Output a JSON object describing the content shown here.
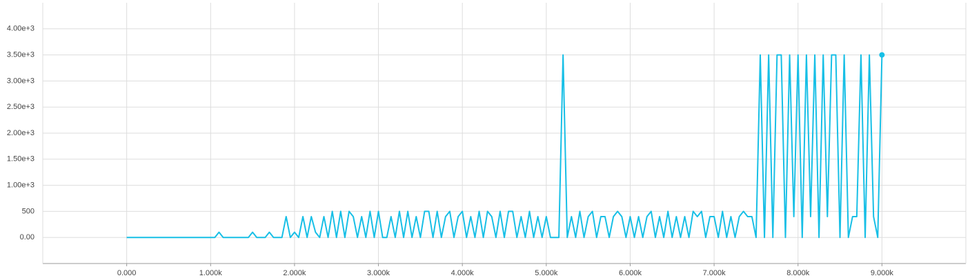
{
  "chart_data": {
    "type": "line",
    "color": "#17bfe6",
    "grid": true,
    "xlim": [
      -1000,
      10000
    ],
    "xticks": [
      {
        "value": 0,
        "label": "0.000"
      },
      {
        "value": 1000,
        "label": "1.000k"
      },
      {
        "value": 2000,
        "label": "2.000k"
      },
      {
        "value": 3000,
        "label": "3.000k"
      },
      {
        "value": 4000,
        "label": "4.000k"
      },
      {
        "value": 5000,
        "label": "5.000k"
      },
      {
        "value": 6000,
        "label": "6.000k"
      },
      {
        "value": 7000,
        "label": "7.000k"
      },
      {
        "value": 8000,
        "label": "8.000k"
      },
      {
        "value": 9000,
        "label": "9.000k"
      }
    ],
    "ylim": [
      -500,
      4500
    ],
    "yticks": [
      {
        "value": 0,
        "label": "0.00"
      },
      500,
      {
        "value": 1000,
        "label": "1.00e+3"
      },
      {
        "value": 1500,
        "label": "1.50e+3"
      },
      {
        "value": 2000,
        "label": "2.00e+3"
      },
      {
        "value": 2500,
        "label": "2.50e+3"
      },
      {
        "value": 3000,
        "label": "3.00e+3"
      },
      {
        "value": 3500,
        "label": "3.50e+3"
      },
      {
        "value": 4000,
        "label": "4.00e+3"
      }
    ],
    "x": [
      0,
      50,
      100,
      150,
      200,
      250,
      300,
      350,
      400,
      450,
      500,
      550,
      600,
      650,
      700,
      750,
      800,
      850,
      900,
      950,
      1000,
      1050,
      1100,
      1150,
      1200,
      1250,
      1300,
      1350,
      1400,
      1450,
      1500,
      1550,
      1600,
      1650,
      1700,
      1750,
      1800,
      1850,
      1900,
      1950,
      2000,
      2050,
      2100,
      2150,
      2200,
      2250,
      2300,
      2350,
      2400,
      2450,
      2500,
      2550,
      2600,
      2650,
      2700,
      2750,
      2800,
      2850,
      2900,
      2950,
      3000,
      3050,
      3100,
      3150,
      3200,
      3250,
      3300,
      3350,
      3400,
      3450,
      3500,
      3550,
      3600,
      3650,
      3700,
      3750,
      3800,
      3850,
      3900,
      3950,
      4000,
      4050,
      4100,
      4150,
      4200,
      4250,
      4300,
      4350,
      4400,
      4450,
      4500,
      4550,
      4600,
      4650,
      4700,
      4750,
      4800,
      4850,
      4900,
      4950,
      5000,
      5050,
      5100,
      5150,
      5200,
      5250,
      5300,
      5350,
      5400,
      5450,
      5500,
      5550,
      5600,
      5650,
      5700,
      5750,
      5800,
      5850,
      5900,
      5950,
      6000,
      6050,
      6100,
      6150,
      6200,
      6250,
      6300,
      6350,
      6400,
      6450,
      6500,
      6550,
      6600,
      6650,
      6700,
      6750,
      6800,
      6850,
      6900,
      6950,
      7000,
      7050,
      7100,
      7150,
      7200,
      7250,
      7300,
      7350,
      7400,
      7450,
      7500,
      7550,
      7600,
      7650,
      7700,
      7750,
      7800,
      7850,
      7900,
      7950,
      8000,
      8050,
      8100,
      8150,
      8200,
      8250,
      8300,
      8350,
      8400,
      8450,
      8500,
      8550,
      8600,
      8650,
      8700,
      8750,
      8800,
      8850,
      8900,
      8950,
      9000
    ],
    "values": [
      0,
      0,
      0,
      0,
      0,
      0,
      0,
      0,
      0,
      0,
      0,
      0,
      0,
      0,
      0,
      0,
      0,
      0,
      0,
      0,
      0,
      0,
      100,
      0,
      0,
      0,
      0,
      0,
      0,
      0,
      100,
      0,
      0,
      0,
      100,
      0,
      0,
      0,
      400,
      0,
      100,
      0,
      400,
      0,
      400,
      100,
      0,
      400,
      0,
      500,
      0,
      500,
      0,
      500,
      400,
      0,
      400,
      0,
      500,
      0,
      500,
      0,
      0,
      400,
      0,
      500,
      0,
      500,
      0,
      400,
      0,
      500,
      500,
      0,
      500,
      0,
      400,
      500,
      0,
      400,
      500,
      0,
      400,
      0,
      500,
      0,
      500,
      400,
      0,
      500,
      0,
      500,
      500,
      0,
      400,
      0,
      500,
      0,
      400,
      0,
      400,
      0,
      0,
      0,
      3500,
      0,
      400,
      0,
      500,
      0,
      400,
      500,
      0,
      400,
      400,
      0,
      400,
      500,
      400,
      0,
      400,
      0,
      400,
      0,
      400,
      500,
      0,
      400,
      0,
      500,
      0,
      400,
      0,
      400,
      0,
      500,
      400,
      500,
      0,
      400,
      400,
      0,
      500,
      0,
      400,
      0,
      400,
      500,
      400,
      400,
      0,
      3500,
      0,
      3500,
      0,
      3500,
      3500,
      0,
      3500,
      400,
      3500,
      0,
      3500,
      400,
      3500,
      0,
      3500,
      400,
      3500,
      3500,
      0,
      3500,
      0,
      400,
      400,
      3500,
      0,
      3500,
      400,
      0,
      3500
    ]
  }
}
